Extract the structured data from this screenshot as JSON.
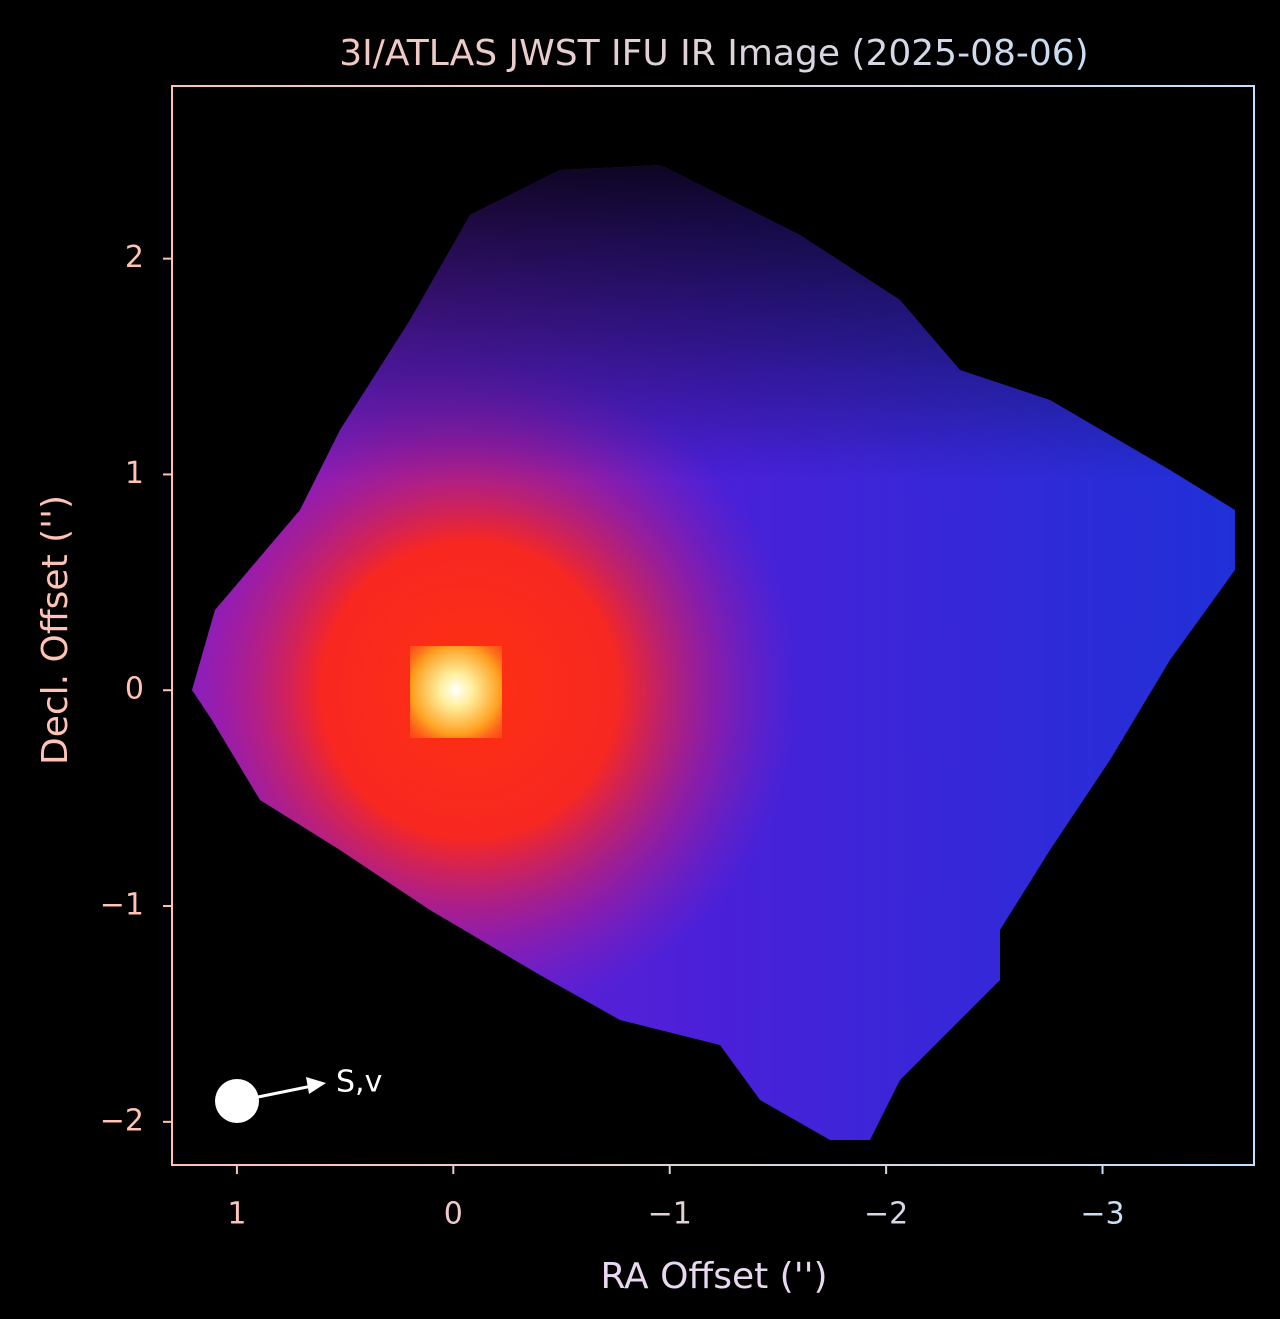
{
  "chart_data": {
    "type": "image",
    "title": "3I/ATLAS JWST IFU IR Image (2025-08-06)",
    "xlabel": "RA Offset ('')",
    "ylabel": "Decl. Offset ('')",
    "xlim": [
      1.3,
      -3.7
    ],
    "ylim": [
      -2.2,
      2.8
    ],
    "xticks": [
      1,
      0,
      {
        "value": -1,
        "label": "−1"
      },
      {
        "value": -2,
        "label": "−2"
      },
      {
        "value": -3,
        "label": "−3"
      }
    ],
    "yticks": [
      {
        "value": -2,
        "label": "−2"
      },
      {
        "value": -1,
        "label": "−1"
      },
      0,
      1,
      2
    ],
    "annotation": "S,v"
  }
}
